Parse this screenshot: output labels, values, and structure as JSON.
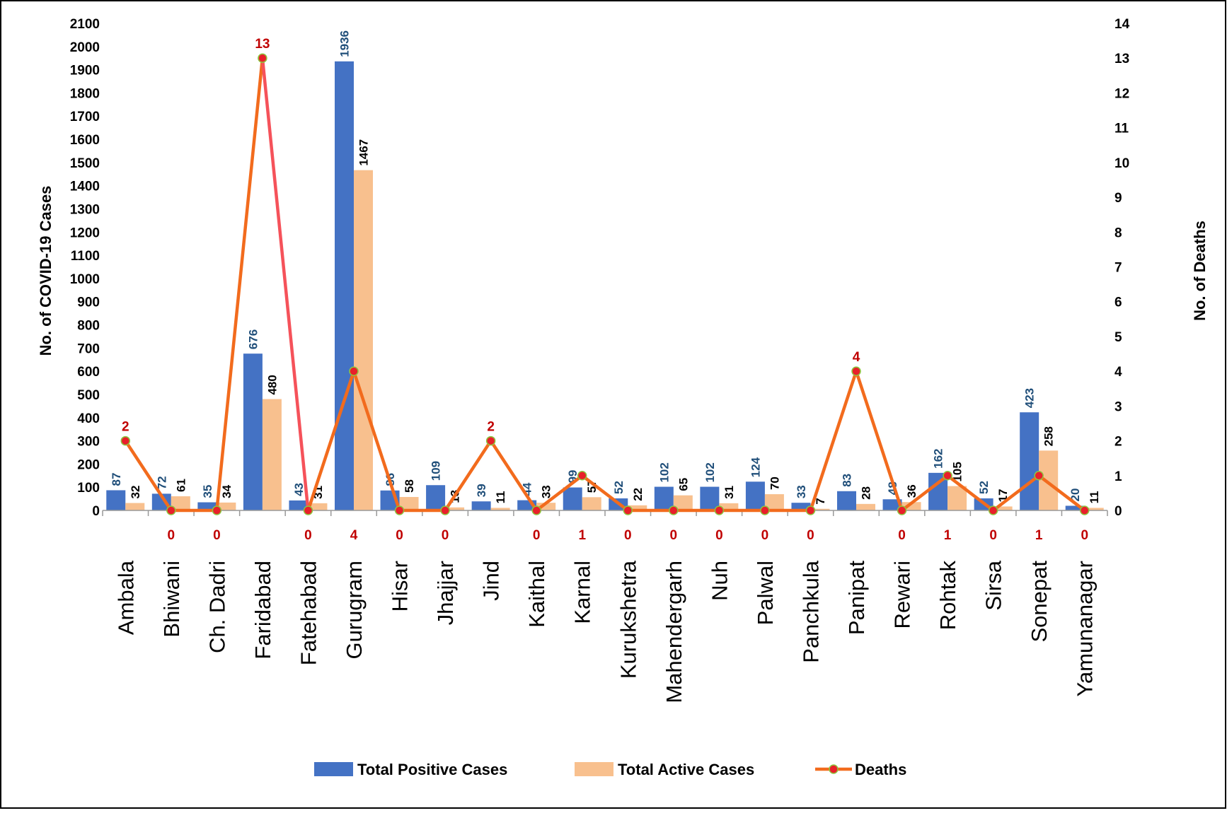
{
  "chart_data": {
    "type": "bar",
    "categories": [
      "Ambala",
      "Bhiwani",
      "Ch. Dadri",
      "Faridabad",
      "Fatehabad",
      "Gurugram",
      "Hisar",
      "Jhajjar",
      "Jind",
      "Kaithal",
      "Karnal",
      "Kurukshetra",
      "Mahendergarh",
      "Nuh",
      "Palwal",
      "Panchkula",
      "Panipat",
      "Rewari",
      "Rohtak",
      "Sirsa",
      "Sonepat",
      "Yamunanagar"
    ],
    "series": [
      {
        "name": "Total Positive Cases",
        "type": "bar",
        "axis": "left",
        "color": "#4472C4",
        "values": [
          87,
          72,
          35,
          676,
          43,
          1936,
          86,
          109,
          39,
          44,
          99,
          52,
          102,
          102,
          124,
          33,
          83,
          48,
          162,
          52,
          423,
          20
        ]
      },
      {
        "name": "Total Active Cases",
        "type": "bar",
        "axis": "left",
        "color": "#F8C08E",
        "values": [
          32,
          61,
          34,
          480,
          31,
          1467,
          58,
          13,
          11,
          33,
          57,
          22,
          65,
          31,
          70,
          7,
          28,
          36,
          105,
          17,
          258,
          11
        ]
      },
      {
        "name": "Deaths",
        "type": "line",
        "axis": "right",
        "color": "#F26B1D",
        "marker": "#E8202A",
        "values": [
          2,
          0,
          0,
          13,
          0,
          4,
          0,
          0,
          2,
          0,
          1,
          0,
          0,
          0,
          0,
          0,
          4,
          0,
          1,
          0,
          1,
          0
        ]
      }
    ],
    "ylabel": "No. of COVID-19 Cases",
    "y2label": "No. of Deaths",
    "ylim": [
      0,
      2100
    ],
    "y_ticks": [
      0,
      100,
      200,
      300,
      400,
      500,
      600,
      700,
      800,
      900,
      1000,
      1100,
      1200,
      1300,
      1400,
      1500,
      1600,
      1700,
      1800,
      1900,
      2000,
      2100
    ],
    "y2lim": [
      0,
      14
    ],
    "y2_ticks": [
      0,
      1,
      2,
      3,
      4,
      5,
      6,
      7,
      8,
      9,
      10,
      11,
      12,
      13,
      14
    ],
    "grid": false,
    "legend": "bottom",
    "legend_entries": [
      "Total Positive Cases",
      "Total Active Cases",
      "Deaths"
    ]
  }
}
